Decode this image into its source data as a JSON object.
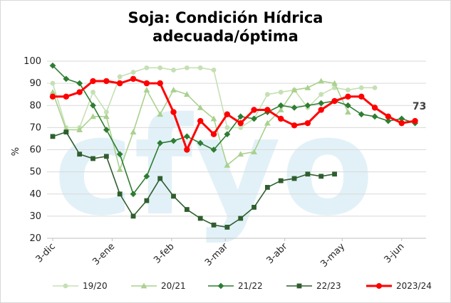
{
  "chart_data": {
    "type": "line",
    "title_lines": [
      "Soja: Condición Hídrica",
      "adecuada/óptima"
    ],
    "ylabel": "%",
    "xlabel": "",
    "ylim": [
      20,
      100
    ],
    "yticks": [
      20,
      30,
      40,
      50,
      60,
      70,
      80,
      90,
      100
    ],
    "xticks": [
      "3-dic",
      "3-ene",
      "3-feb",
      "3-mar",
      "3-abr",
      "3-may",
      "3-jun"
    ],
    "grid": "horizontal",
    "legend_position": "bottom",
    "watermark": "cfyo",
    "end_label": "73",
    "series": [
      {
        "name": "19/20",
        "color": "#c5e0b4",
        "marker": "circle",
        "values": [
          [
            0,
            90
          ],
          [
            1,
            70
          ],
          [
            2,
            70
          ],
          [
            3,
            86
          ],
          [
            4,
            77
          ],
          [
            5,
            93
          ],
          [
            6,
            95
          ],
          [
            7,
            97
          ],
          [
            8,
            97
          ],
          [
            9,
            96
          ],
          [
            10,
            97
          ],
          [
            11,
            97
          ],
          [
            12,
            96
          ],
          [
            13,
            70
          ],
          [
            14,
            70
          ],
          [
            15,
            74
          ],
          [
            16,
            85
          ],
          [
            17,
            86
          ],
          [
            18,
            87
          ],
          [
            19,
            79
          ],
          [
            20,
            85
          ],
          [
            21,
            88
          ],
          [
            22,
            87
          ],
          [
            23,
            88
          ],
          [
            24,
            88
          ]
        ]
      },
      {
        "name": "20/21",
        "color": "#a9d18e",
        "marker": "triangle",
        "values": [
          [
            0,
            86
          ],
          [
            1,
            69
          ],
          [
            2,
            69
          ],
          [
            3,
            75
          ],
          [
            4,
            75
          ],
          [
            5,
            51
          ],
          [
            6,
            68
          ],
          [
            7,
            87
          ],
          [
            8,
            76
          ],
          [
            9,
            87
          ],
          [
            10,
            85
          ],
          [
            11,
            79
          ],
          [
            12,
            74
          ],
          [
            13,
            53
          ],
          [
            14,
            58
          ],
          [
            15,
            59
          ],
          [
            16,
            72
          ],
          [
            17,
            78
          ],
          [
            18,
            87
          ],
          [
            19,
            88
          ],
          [
            20,
            91
          ],
          [
            21,
            90
          ],
          [
            22,
            77
          ]
        ]
      },
      {
        "name": "21/22",
        "color": "#2e7d32",
        "marker": "diamond",
        "values": [
          [
            0,
            98
          ],
          [
            1,
            92
          ],
          [
            2,
            90
          ],
          [
            3,
            80
          ],
          [
            4,
            69
          ],
          [
            5,
            58
          ],
          [
            6,
            40
          ],
          [
            7,
            48
          ],
          [
            8,
            63
          ],
          [
            9,
            64
          ],
          [
            10,
            66
          ],
          [
            11,
            63
          ],
          [
            12,
            60
          ],
          [
            13,
            67
          ],
          [
            14,
            75
          ],
          [
            15,
            74
          ],
          [
            16,
            77
          ],
          [
            17,
            80
          ],
          [
            18,
            79
          ],
          [
            19,
            80
          ],
          [
            20,
            81
          ],
          [
            21,
            82
          ],
          [
            22,
            80
          ],
          [
            23,
            76
          ],
          [
            24,
            75
          ],
          [
            25,
            73
          ],
          [
            26,
            74
          ],
          [
            27,
            72
          ]
        ]
      },
      {
        "name": "22/23",
        "color": "#2e5e2e",
        "marker": "square",
        "values": [
          [
            0,
            66
          ],
          [
            1,
            68
          ],
          [
            2,
            58
          ],
          [
            3,
            56
          ],
          [
            4,
            57
          ],
          [
            5,
            40
          ],
          [
            6,
            30
          ],
          [
            7,
            37
          ],
          [
            8,
            47
          ],
          [
            9,
            39
          ],
          [
            10,
            33
          ],
          [
            11,
            29
          ],
          [
            12,
            26
          ],
          [
            13,
            25
          ],
          [
            14,
            29
          ],
          [
            15,
            34
          ],
          [
            16,
            43
          ],
          [
            17,
            46
          ],
          [
            18,
            47
          ],
          [
            19,
            49
          ],
          [
            20,
            48
          ],
          [
            21,
            49
          ]
        ]
      },
      {
        "name": "2023/24",
        "color": "#ff0000",
        "marker": "circle",
        "values": [
          [
            0,
            84
          ],
          [
            1,
            84
          ],
          [
            2,
            86
          ],
          [
            3,
            91
          ],
          [
            4,
            91
          ],
          [
            5,
            90
          ],
          [
            6,
            92
          ],
          [
            7,
            90
          ],
          [
            8,
            90
          ],
          [
            9,
            77
          ],
          [
            10,
            60
          ],
          [
            11,
            73
          ],
          [
            12,
            67
          ],
          [
            13,
            76
          ],
          [
            14,
            72
          ],
          [
            15,
            78
          ],
          [
            16,
            78
          ],
          [
            17,
            74
          ],
          [
            18,
            71
          ],
          [
            19,
            72
          ],
          [
            20,
            78
          ],
          [
            21,
            82
          ],
          [
            22,
            84
          ],
          [
            23,
            84
          ],
          [
            24,
            79
          ],
          [
            25,
            75
          ],
          [
            26,
            72
          ],
          [
            27,
            73
          ]
        ]
      }
    ]
  }
}
